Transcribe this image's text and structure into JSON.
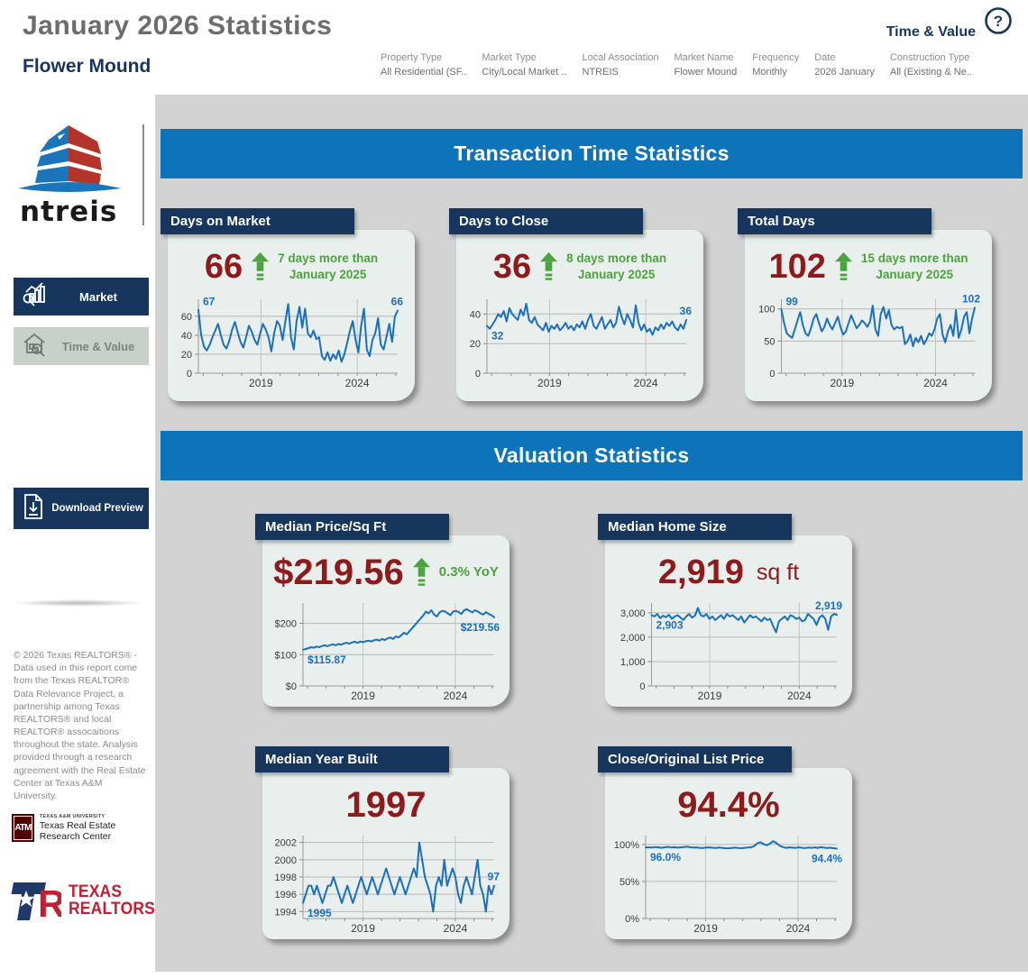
{
  "header": {
    "title": "January 2026 Statistics",
    "subtitle": "Flower Mound",
    "view_label": "Time & Value",
    "filters": [
      {
        "label": "Property Type",
        "value": "All Residential (SF.."
      },
      {
        "label": "Market Type",
        "value": "City/Local Market .."
      },
      {
        "label": "Local Association",
        "value": "NTREIS"
      },
      {
        "label": "Market Name",
        "value": "Flower Mound"
      },
      {
        "label": "Frequency",
        "value": "Monthly"
      },
      {
        "label": "Date",
        "value": "2026 January"
      },
      {
        "label": "Construction Type",
        "value": "All (Existing & Ne.."
      }
    ]
  },
  "sidebar": {
    "logo_text": "ntreis",
    "nav_market": "Market",
    "nav_time_value": "Time & Value",
    "download_label": "Download Preview",
    "copyright": "© 2026 Texas REALTORS® - Data used in this report come from the Texas REALTOR® Data Relevance Project, a partnership among Texas REALTORS® and local REALTOR® assocaitions throughout the state. Analysis provided through a research agreement with the Real Estate Center at Texas A&M University.",
    "tamu_line1": "TEXAS A&M UNIVERSITY",
    "tamu_line2": "Texas Real Estate Research Center",
    "tamu_monogram": "ATM",
    "realtors_line1": "TEXAS",
    "realtors_line2": "REALTORS"
  },
  "sections": [
    {
      "title": "Transaction Time Statistics"
    },
    {
      "title": "Valuation Statistics"
    }
  ],
  "cards": {
    "days_on_market": {
      "title": "Days on Market",
      "value": "66",
      "change_line1": "7 days more than",
      "change_line2": "January 2025"
    },
    "days_to_close": {
      "title": "Days to Close",
      "value": "36",
      "change_line1": "8 days more than",
      "change_line2": "January 2025"
    },
    "total_days": {
      "title": "Total Days",
      "value": "102",
      "change_line1": "15 days more than",
      "change_line2": "January 2025"
    },
    "median_price_sqft": {
      "title": "Median Price/Sq Ft",
      "value": "$219.56",
      "change": "0.3% YoY"
    },
    "median_home_size": {
      "title": "Median Home Size",
      "value": "2,919",
      "suffix": "sq ft"
    },
    "median_year_built": {
      "title": "Median Year Built",
      "value": "1997"
    },
    "close_original": {
      "title": "Close/Original List Price",
      "value": "94.4%"
    }
  },
  "theme": {
    "navy": "#17365d",
    "banner_blue": "#0e74ba",
    "card_bg": "#e9efec",
    "value_red": "#8e1b1b",
    "change_green": "#4da33f",
    "line_blue": "#1b6fbc"
  },
  "chart_data": [
    {
      "id": "days_on_market",
      "type": "line",
      "title": "Days on Market",
      "x_range": [
        2015.75,
        2026.1
      ],
      "xticks": [
        {
          "v": 2019,
          "label": "2019"
        },
        {
          "v": 2024,
          "label": "2024"
        }
      ],
      "ylim": [
        0,
        78
      ],
      "yticks": [
        {
          "v": 0,
          "label": "0"
        },
        {
          "v": 20,
          "label": "20"
        },
        {
          "v": 40,
          "label": "40"
        },
        {
          "v": 60,
          "label": "60"
        }
      ],
      "start_label": "67",
      "start_pos": "above",
      "end_label": "66",
      "end_pos": "above",
      "values": [
        67,
        40,
        28,
        24,
        30,
        38,
        45,
        52,
        40,
        30,
        26,
        34,
        46,
        54,
        43,
        33,
        27,
        38,
        50,
        44,
        35,
        30,
        42,
        52,
        46,
        38,
        23,
        42,
        55,
        50,
        35,
        55,
        73,
        38,
        25,
        55,
        70,
        48,
        68,
        42,
        38,
        45,
        36,
        38,
        18,
        14,
        22,
        13,
        20,
        15,
        24,
        12,
        20,
        32,
        45,
        55,
        35,
        22,
        50,
        68,
        25,
        18,
        35,
        42,
        58,
        30,
        25,
        38,
        52,
        33,
        60,
        66
      ]
    },
    {
      "id": "days_to_close",
      "type": "line",
      "title": "Days to Close",
      "x_range": [
        2015.75,
        2026.1
      ],
      "xticks": [
        {
          "v": 2019,
          "label": "2019"
        },
        {
          "v": 2024,
          "label": "2024"
        }
      ],
      "ylim": [
        0,
        50
      ],
      "yticks": [
        {
          "v": 0,
          "label": "0"
        },
        {
          "v": 20,
          "label": "20"
        },
        {
          "v": 40,
          "label": "40"
        }
      ],
      "start_label": "32",
      "start_pos": "below",
      "end_label": "36",
      "end_pos": "above",
      "values": [
        32,
        30,
        33,
        36,
        40,
        38,
        42,
        35,
        44,
        40,
        38,
        36,
        43,
        39,
        47,
        36,
        34,
        38,
        33,
        31,
        29,
        34,
        28,
        32,
        30,
        33,
        29,
        31,
        34,
        30,
        32,
        29,
        33,
        31,
        35,
        30,
        36,
        40,
        32,
        30,
        34,
        38,
        30,
        33,
        36,
        31,
        34,
        45,
        38,
        33,
        40,
        36,
        31,
        46,
        34,
        29,
        33,
        28,
        30,
        26,
        31,
        29,
        33,
        30,
        34,
        32,
        35,
        31,
        29,
        33,
        30,
        36
      ]
    },
    {
      "id": "total_days",
      "type": "line",
      "title": "Total Days",
      "x_range": [
        2015.75,
        2026.1
      ],
      "xticks": [
        {
          "v": 2019,
          "label": "2019"
        },
        {
          "v": 2024,
          "label": "2024"
        }
      ],
      "ylim": [
        0,
        115
      ],
      "yticks": [
        {
          "v": 0,
          "label": "0"
        },
        {
          "v": 50,
          "label": "50"
        },
        {
          "v": 100,
          "label": "100"
        }
      ],
      "start_label": "99",
      "start_pos": "above",
      "end_label": "102",
      "end_pos": "above",
      "values": [
        99,
        78,
        62,
        58,
        55,
        68,
        82,
        95,
        75,
        62,
        58,
        70,
        85,
        92,
        78,
        65,
        72,
        85,
        75,
        68,
        78,
        88,
        72,
        60,
        65,
        78,
        90,
        80,
        70,
        75,
        82,
        78,
        72,
        80,
        105,
        68,
        58,
        92,
        103,
        85,
        98,
        75,
        68,
        72,
        70,
        72,
        45,
        50,
        60,
        42,
        55,
        48,
        58,
        45,
        52,
        62,
        58,
        68,
        85,
        92,
        60,
        48,
        65,
        75,
        58,
        98,
        55,
        68,
        88,
        95,
        62,
        85,
        102
      ]
    },
    {
      "id": "median_price_sqft",
      "type": "line",
      "title": "Median Price/Sq Ft",
      "x_range": [
        2015.75,
        2026.1
      ],
      "xticks": [
        {
          "v": 2019,
          "label": "2019"
        },
        {
          "v": 2024,
          "label": "2024"
        }
      ],
      "ylim": [
        0,
        265
      ],
      "yticks": [
        {
          "v": 0,
          "label": "$0"
        },
        {
          "v": 100,
          "label": "$100"
        },
        {
          "v": 200,
          "label": "$200"
        }
      ],
      "start_label": "$115.87",
      "start_pos": "below",
      "end_label": "$219.56",
      "end_pos": "below",
      "values": [
        115.87,
        118,
        121,
        124,
        122,
        126,
        124,
        128,
        130,
        127,
        131,
        133,
        130,
        134,
        132,
        136,
        138,
        135,
        139,
        141,
        138,
        142,
        140,
        143,
        145,
        142,
        146,
        148,
        145,
        150,
        147,
        152,
        155,
        150,
        158,
        155,
        162,
        170,
        165,
        175,
        185,
        195,
        205,
        215,
        225,
        238,
        232,
        242,
        228,
        222,
        235,
        240,
        238,
        232,
        226,
        238,
        240,
        236,
        230,
        242,
        245,
        240,
        235,
        242,
        238,
        232,
        228,
        236,
        230,
        226,
        219.56
      ]
    },
    {
      "id": "median_home_size",
      "type": "line",
      "title": "Median Home Size",
      "x_range": [
        2015.75,
        2026.1
      ],
      "xticks": [
        {
          "v": 2019,
          "label": "2019"
        },
        {
          "v": 2024,
          "label": "2024"
        }
      ],
      "ylim": [
        0,
        3400
      ],
      "yticks": [
        {
          "v": 0,
          "label": "0"
        },
        {
          "v": 1000,
          "label": "1,000"
        },
        {
          "v": 2000,
          "label": "2,000"
        },
        {
          "v": 3000,
          "label": "3,000"
        }
      ],
      "start_label": "2,903",
      "start_pos": "below",
      "end_label": "2,919",
      "end_pos": "above",
      "values": [
        2903,
        2850,
        2950,
        2780,
        2880,
        2820,
        2920,
        2750,
        2850,
        2900,
        2800,
        2700,
        2850,
        2950,
        2800,
        2880,
        3200,
        2900,
        2850,
        2950,
        2750,
        2850,
        2700,
        2800,
        2900,
        2750,
        2950,
        2850,
        2900,
        2800,
        2700,
        2850,
        2600,
        2750,
        2900,
        2800,
        2850,
        2750,
        2650,
        2800,
        2700,
        2750,
        2450,
        2200,
        2650,
        2750,
        2850,
        2700,
        2900,
        2850,
        2750,
        2800,
        2650,
        2700,
        2950,
        2850,
        2750,
        2500,
        2800,
        2900,
        2750,
        2300,
        2850,
        2950,
        2919
      ]
    },
    {
      "id": "median_year_built",
      "type": "line",
      "title": "Median Year Built",
      "x_range": [
        2015.75,
        2026.1
      ],
      "xticks": [
        {
          "v": 2019,
          "label": "2019"
        },
        {
          "v": 2024,
          "label": "2024"
        }
      ],
      "ylim": [
        1993.2,
        2002.8
      ],
      "yticks": [
        {
          "v": 1994,
          "label": "1994"
        },
        {
          "v": 1996,
          "label": "1996"
        },
        {
          "v": 1998,
          "label": "1998"
        },
        {
          "v": 2000,
          "label": "2000"
        },
        {
          "v": 2002,
          "label": "2002"
        }
      ],
      "start_label": "1995",
      "start_pos": "below",
      "end_label": "97",
      "end_pos": "above",
      "values": [
        1995,
        1996,
        1997,
        1997,
        1996,
        1997,
        1996,
        1995,
        1996,
        1997,
        1997,
        1998,
        1997,
        1996,
        1995,
        1996,
        1997,
        1996,
        1995,
        1996,
        1997,
        1998,
        1997,
        1996,
        1997,
        1998,
        1997,
        1996,
        1997,
        1998,
        1999,
        1998,
        1997,
        1996,
        1997,
        1998,
        1997,
        1996,
        1997,
        1998,
        1999,
        1998,
        2002,
        2000,
        1998,
        1997,
        1996,
        1994,
        1997,
        1998,
        1997,
        2000,
        1997,
        1998,
        1999,
        1998,
        1996,
        1995,
        1997,
        1998,
        1997,
        1996,
        1998,
        2000,
        1997,
        1996,
        1994,
        1997,
        1996,
        1997
      ]
    },
    {
      "id": "close_original",
      "type": "line",
      "title": "Close/Original List Price",
      "x_range": [
        2015.75,
        2026.1
      ],
      "xticks": [
        {
          "v": 2019,
          "label": "2019"
        },
        {
          "v": 2024,
          "label": "2024"
        }
      ],
      "ylim": [
        0,
        112
      ],
      "yticks": [
        {
          "v": 0,
          "label": "0%"
        },
        {
          "v": 50,
          "label": "50%"
        },
        {
          "v": 100,
          "label": "100%"
        }
      ],
      "start_label": "96.0%",
      "start_pos": "below",
      "end_label": "94.4%",
      "end_pos": "below",
      "values": [
        96.0,
        96.2,
        95.8,
        96.5,
        96.0,
        95.5,
        96.2,
        96.8,
        95.9,
        96.3,
        95.7,
        96.1,
        96.4,
        97.0,
        96.2,
        95.8,
        96.0,
        95.5,
        95.2,
        95.8,
        96.1,
        95.6,
        95.3,
        95.8,
        95.5,
        95.0,
        94.8,
        95.3,
        95.7,
        95.2,
        94.9,
        95.4,
        95.8,
        96.2,
        97.5,
        101.5,
        103.0,
        100.5,
        99.0,
        101.0,
        104.5,
        102.0,
        98.5,
        96.5,
        95.5,
        96.0,
        95.8,
        95.3,
        96.2,
        95.6,
        95.1,
        95.8,
        95.4,
        96.0,
        95.5,
        96.3,
        95.7,
        95.2,
        95.6,
        95.0,
        94.4
      ]
    }
  ]
}
